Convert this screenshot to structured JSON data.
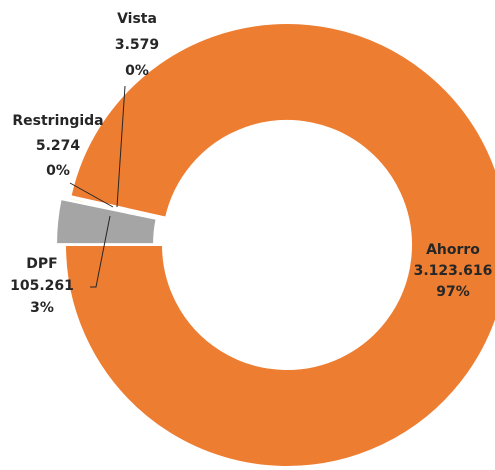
{
  "chart_data": {
    "type": "donut",
    "categories": [
      "Ahorro",
      "DPF",
      "Restringida",
      "Vista"
    ],
    "values": [
      3123616,
      105261,
      5274,
      3579
    ],
    "value_labels": [
      "3.123.616",
      "105.261",
      "5.274",
      "3.579"
    ],
    "percentages": [
      97,
      3,
      0,
      0
    ],
    "percentage_labels": [
      "97%",
      "3%",
      "0%",
      "0%"
    ],
    "colors": [
      "#ED7D31",
      "#A5A5A5",
      "#FFC000",
      "#5B9BD5"
    ]
  }
}
